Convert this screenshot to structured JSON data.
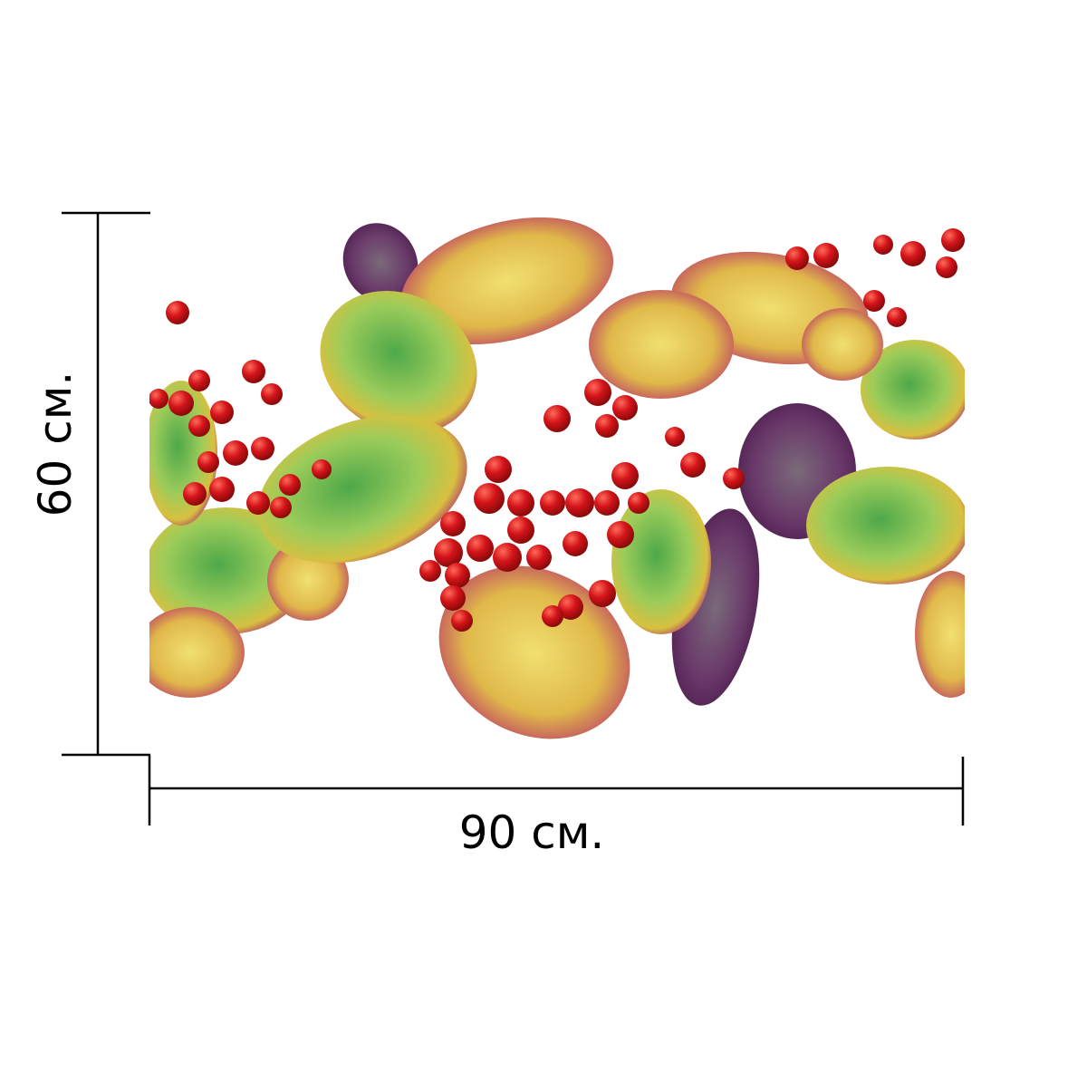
{
  "dimensions": {
    "height_label": "60 см.",
    "width_label": "90 см."
  }
}
